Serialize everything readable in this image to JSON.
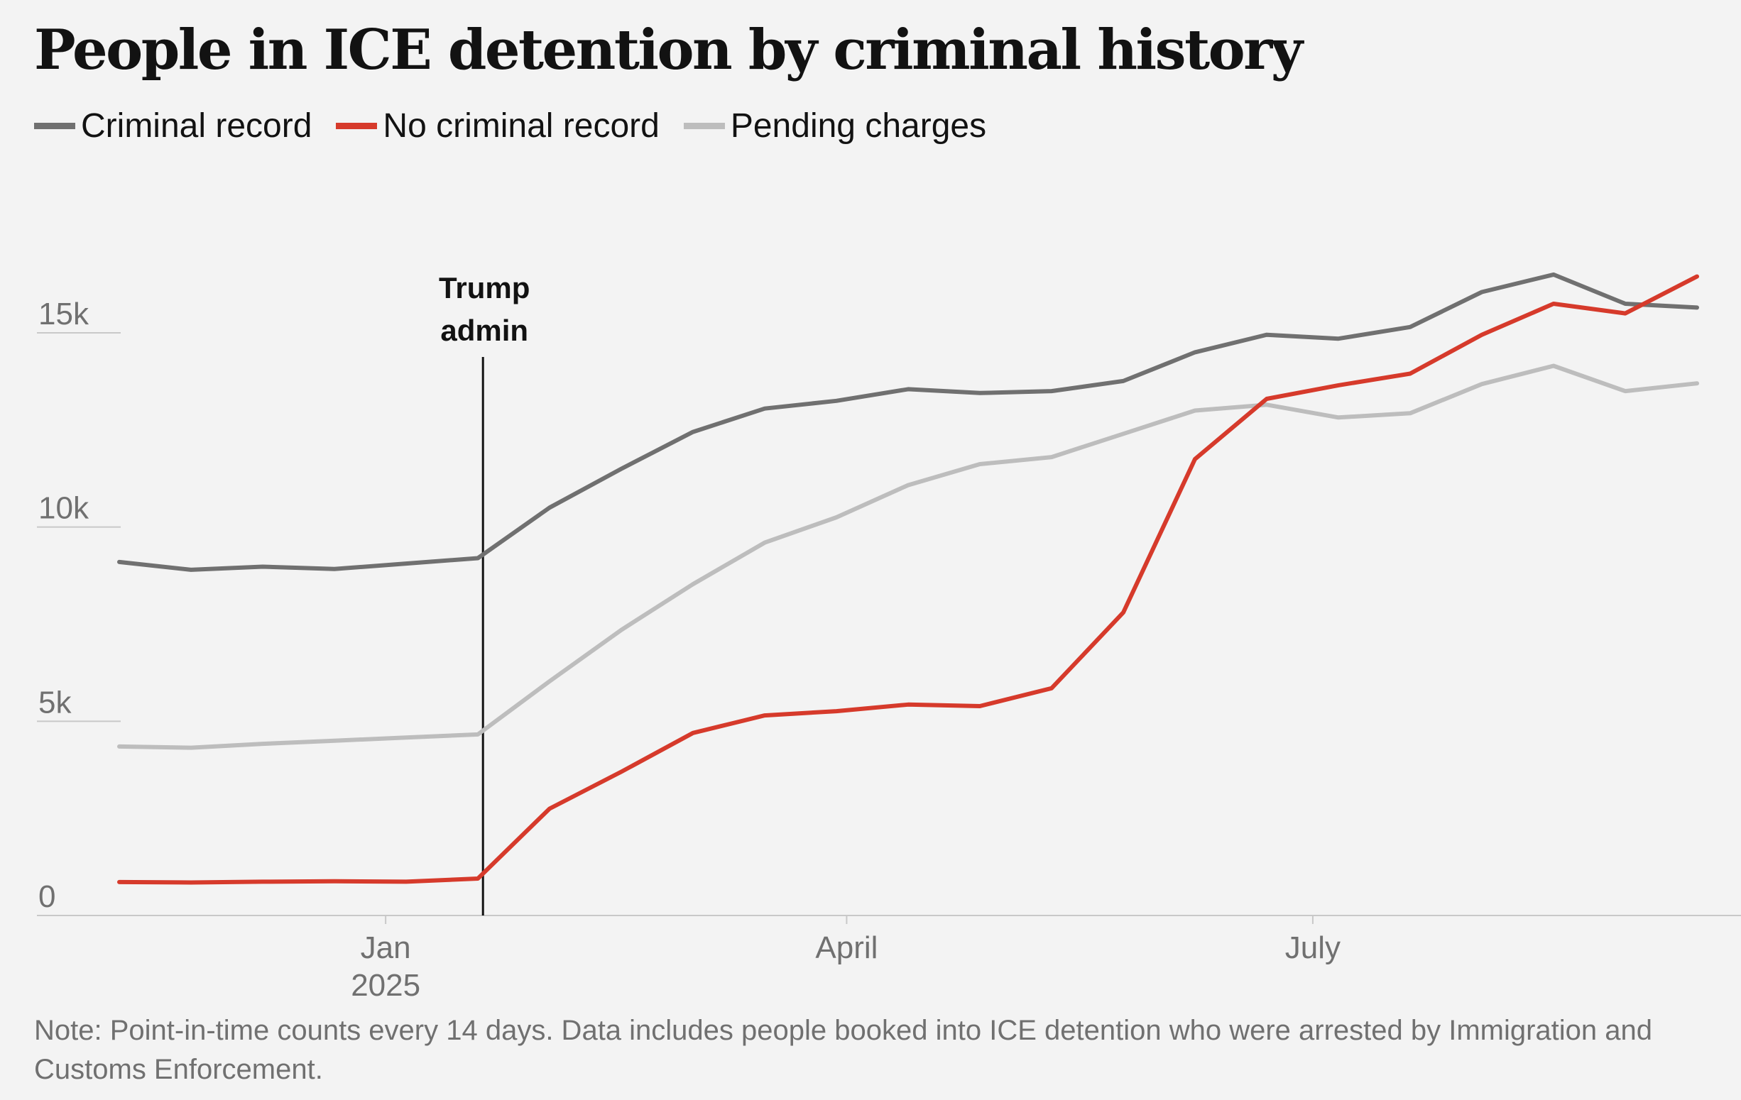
{
  "title": "People in ICE detention by criminal history",
  "note": "Note: Point-in-time counts every 14 days. Data includes people booked into ICE detention who were arrested by Immigration and Customs Enforcement.",
  "colors": {
    "criminal_record": "#707070",
    "no_criminal_record": "#d63a2b",
    "pending_charges": "#bdbdbd",
    "annotation": "#121212",
    "gridline": "#c8c8c8",
    "tick_label": "#707070"
  },
  "chart_data": {
    "type": "line",
    "title": "People in ICE detention by criminal history",
    "xlabel": "",
    "ylabel": "",
    "ylim": [
      0,
      17500
    ],
    "grid": true,
    "legend_position": "top-left",
    "x": [
      "2024-11-10",
      "2024-11-24",
      "2024-12-08",
      "2024-12-22",
      "2025-01-05",
      "2025-01-19",
      "2025-02-02",
      "2025-02-16",
      "2025-03-02",
      "2025-03-16",
      "2025-03-30",
      "2025-04-13",
      "2025-04-27",
      "2025-05-11",
      "2025-05-25",
      "2025-06-08",
      "2025-06-22",
      "2025-07-06",
      "2025-07-20",
      "2025-08-03",
      "2025-08-17",
      "2025-08-31",
      "2025-09-14"
    ],
    "x_ticks": [
      {
        "label": "Jan",
        "sublabel": "2025",
        "date": "2025-01-01"
      },
      {
        "label": "April",
        "sublabel": "",
        "date": "2025-04-01"
      },
      {
        "label": "July",
        "sublabel": "",
        "date": "2025-07-01"
      }
    ],
    "y_ticks": [
      {
        "value": 0,
        "label": "0"
      },
      {
        "value": 5000,
        "label": "5k"
      },
      {
        "value": 10000,
        "label": "10k"
      },
      {
        "value": 15000,
        "label": "15k"
      }
    ],
    "series": [
      {
        "name": "Criminal record",
        "key": "criminal_record",
        "values": [
          9100,
          8900,
          8980,
          8920,
          9060,
          9200,
          10500,
          11500,
          12450,
          13050,
          13250,
          13550,
          13450,
          13500,
          13760,
          14500,
          14950,
          14850,
          15150,
          16050,
          16500,
          15750,
          15650
        ]
      },
      {
        "name": "No criminal record",
        "key": "no_criminal_record",
        "values": [
          860,
          850,
          870,
          880,
          870,
          950,
          2750,
          3700,
          4700,
          5150,
          5260,
          5430,
          5390,
          5850,
          7800,
          11750,
          13300,
          13650,
          13950,
          14950,
          15750,
          15500,
          16450
        ]
      },
      {
        "name": "Pending charges",
        "key": "pending_charges",
        "values": [
          4350,
          4320,
          4420,
          4500,
          4580,
          4660,
          6030,
          7350,
          8530,
          9600,
          10250,
          11080,
          11620,
          11800,
          12400,
          13000,
          13150,
          12820,
          12930,
          13680,
          14150,
          13500,
          13700
        ]
      }
    ],
    "annotations": [
      {
        "text_line1": "Trump",
        "text_line2": "admin",
        "date": "2025-01-20"
      }
    ]
  }
}
